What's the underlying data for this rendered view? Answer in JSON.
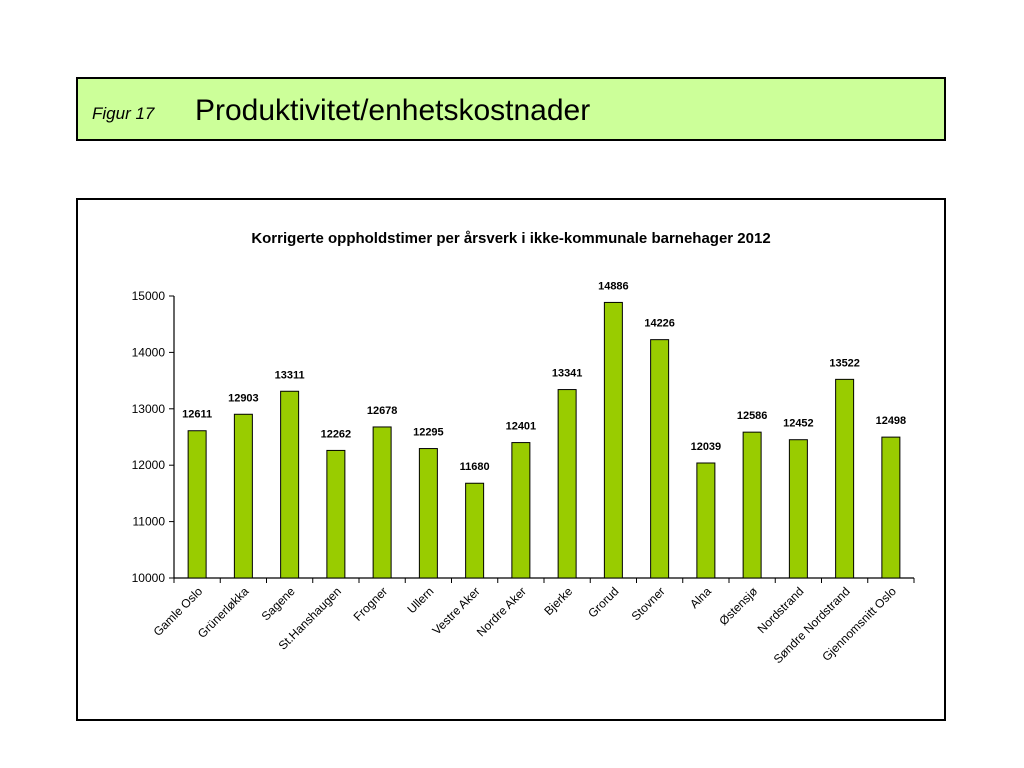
{
  "header": {
    "figure_label": "Figur 17",
    "title": "Produktivitet/enhetskostnader",
    "background": "#ccff99"
  },
  "chart_data": {
    "type": "bar",
    "title": "Korrigerte oppholdstimer per årsverk i ikke-kommunale barnehager 2012",
    "xlabel": "",
    "ylabel": "",
    "ylim": [
      10000,
      15000
    ],
    "yticks": [
      10000,
      11000,
      12000,
      13000,
      14000,
      15000
    ],
    "grid": false,
    "bar_color": "#99cc00",
    "categories": [
      "Gamle Oslo",
      "Grünerløkka",
      "Sagene",
      "St.Hanshaugen",
      "Frogner",
      "Ullern",
      "Vestre Aker",
      "Nordre Aker",
      "Bjerke",
      "Grorud",
      "Stovner",
      "Alna",
      "Østensjø",
      "Nordstrand",
      "Søndre Nordstrand",
      "Gjennomsnitt Oslo"
    ],
    "values": [
      12611,
      12903,
      13311,
      12262,
      12678,
      12295,
      11680,
      12401,
      13341,
      14886,
      14226,
      12039,
      12586,
      12452,
      13522,
      12498
    ]
  }
}
